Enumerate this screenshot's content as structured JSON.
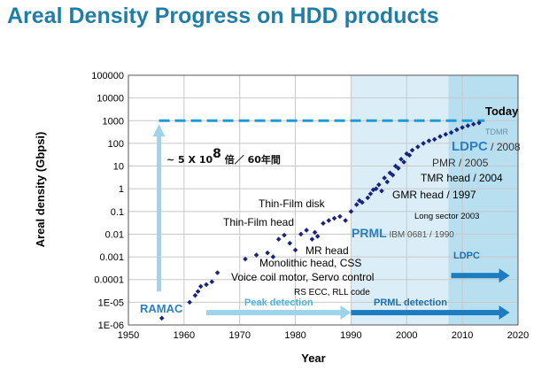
{
  "chart_data": {
    "type": "scatter",
    "title": "Areal Density Progress on HDD products",
    "xlabel": "Year",
    "ylabel": "Areal density (Gbpsi)",
    "xlim": [
      1950,
      2020
    ],
    "ylim_exponent": [
      -6,
      5
    ],
    "y_scale": "log",
    "grid": true,
    "x_ticks": [
      "1950",
      "1960",
      "1970",
      "1980",
      "1990",
      "2000",
      "2010",
      "2020"
    ],
    "y_ticks": [
      "1E-06",
      "1E-05",
      "0.0001",
      "0.001",
      "0.01",
      "0.1",
      "1",
      "10",
      "100",
      "1000",
      "10000",
      "100000"
    ],
    "series_color": "#1a237e",
    "points": [
      [
        1956,
        2e-06
      ],
      [
        1961,
        1e-05
      ],
      [
        1962,
        2e-05
      ],
      [
        1962.5,
        3e-05
      ],
      [
        1963,
        5e-05
      ],
      [
        1964,
        6e-05
      ],
      [
        1965,
        8e-05
      ],
      [
        1966,
        0.0002
      ],
      [
        1971,
        0.0008
      ],
      [
        1973,
        0.0012
      ],
      [
        1975,
        0.0015
      ],
      [
        1976,
        0.001
      ],
      [
        1977,
        0.006
      ],
      [
        1978,
        0.009
      ],
      [
        1979,
        0.004
      ],
      [
        1980,
        0.002
      ],
      [
        1981,
        0.01
      ],
      [
        1982,
        0.015
      ],
      [
        1983,
        0.006
      ],
      [
        1983.5,
        0.012
      ],
      [
        1984,
        0.008
      ],
      [
        1985,
        0.03
      ],
      [
        1986,
        0.04
      ],
      [
        1987,
        0.05
      ],
      [
        1988,
        0.06
      ],
      [
        1989,
        0.04
      ],
      [
        1990,
        0.1
      ],
      [
        1991,
        0.2
      ],
      [
        1991.5,
        0.3
      ],
      [
        1992,
        0.25
      ],
      [
        1993,
        0.4
      ],
      [
        1993.5,
        0.6
      ],
      [
        1994,
        0.9
      ],
      [
        1994.5,
        1
      ],
      [
        1995,
        1.5
      ],
      [
        1995.5,
        0.8
      ],
      [
        1996,
        3
      ],
      [
        1996.5,
        2
      ],
      [
        1997,
        5
      ],
      [
        1997.5,
        4
      ],
      [
        1998,
        10
      ],
      [
        1998.5,
        8
      ],
      [
        1999,
        20
      ],
      [
        1999.5,
        15
      ],
      [
        2000,
        35
      ],
      [
        2000.5,
        30
      ],
      [
        2001,
        50
      ],
      [
        2002,
        70
      ],
      [
        2003,
        100
      ],
      [
        2004,
        130
      ],
      [
        2005,
        150
      ],
      [
        2006,
        200
      ],
      [
        2007,
        250
      ],
      [
        2008,
        300
      ],
      [
        2009,
        400
      ],
      [
        2010,
        500
      ],
      [
        2011,
        600
      ],
      [
        2012,
        700
      ],
      [
        2013,
        800
      ]
    ],
    "annotations": {
      "today": "Today",
      "tdmr": "TDMR",
      "ldpc": "LDPC",
      "ldpc_year": " / 2008",
      "pmr": "PMR / 2005",
      "tmr": "TMR head / 2004",
      "gmr": "GMR head / 1997",
      "long_sector": "Long sector  2003",
      "prml": "PRML",
      "prml_sub": " IBM 0681 / 1990",
      "thin_film_disk": "Thin-Film  disk",
      "thin_film_head": "Thin-Film  head",
      "mr_head": "MR head",
      "monolithic": "Monolithic head, CSS",
      "voice_coil": "Voice coil motor, Servo control",
      "rs_ecc": "RS ECC, RLL code",
      "ramac": "RAMAC",
      "growth_prefix": "~ 5 X 10",
      "growth_exp": "8",
      "growth_suffix": " 倍／ 60年間",
      "peak_detection": "Peak detection",
      "prml_detection": "PRML detection",
      "ldpc_band": "LDPC"
    },
    "colors": {
      "title": "#1f7ea8",
      "band_prml": "#dbeef7",
      "band_ldpc": "#b7dff0",
      "dash_line": "#1e9bd7",
      "arrow_light": "#9ed3ec",
      "arrow_dark": "#1c7cbf",
      "label_blue": "#2a7fc4"
    }
  }
}
